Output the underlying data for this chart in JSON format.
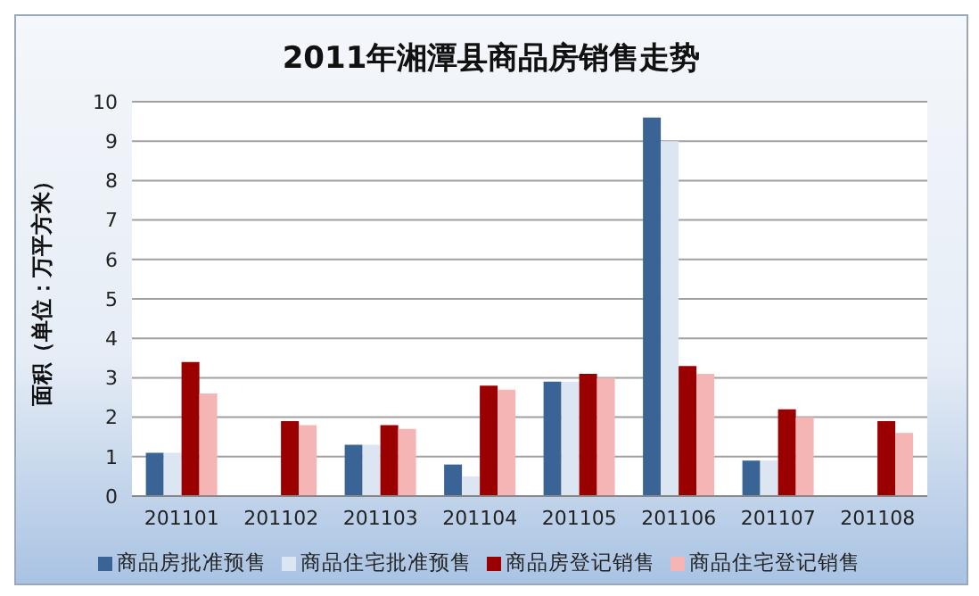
{
  "chart_data": {
    "type": "bar",
    "title": "2011年湘潭县商品房销售走势",
    "ylabel": "面积（单位：万平方米）",
    "categories": [
      "201101",
      "201102",
      "201103",
      "201104",
      "201105",
      "201106",
      "201107",
      "201108"
    ],
    "series": [
      {
        "name": "商品房批准预售",
        "color": "#3a6496",
        "values": [
          1.1,
          0,
          1.3,
          0.8,
          2.9,
          9.6,
          0.9,
          0
        ]
      },
      {
        "name": "商品住宅批准预售",
        "color": "#dce6f2",
        "values": [
          1.1,
          0,
          1.3,
          0.5,
          2.9,
          9.0,
          0.9,
          0
        ]
      },
      {
        "name": "商品房登记销售",
        "color": "#9b0000",
        "values": [
          3.4,
          1.9,
          1.8,
          2.8,
          3.1,
          3.3,
          2.2,
          1.9
        ]
      },
      {
        "name": "商品住宅登记销售",
        "color": "#f5b5b5",
        "values": [
          2.6,
          1.8,
          1.7,
          2.7,
          3.0,
          3.1,
          2.0,
          1.6
        ]
      }
    ],
    "ylim": [
      0,
      10
    ],
    "yticks": [
      0,
      1,
      2,
      3,
      4,
      5,
      6,
      7,
      8,
      9,
      10
    ],
    "grid": "y",
    "legend": "bottom"
  }
}
